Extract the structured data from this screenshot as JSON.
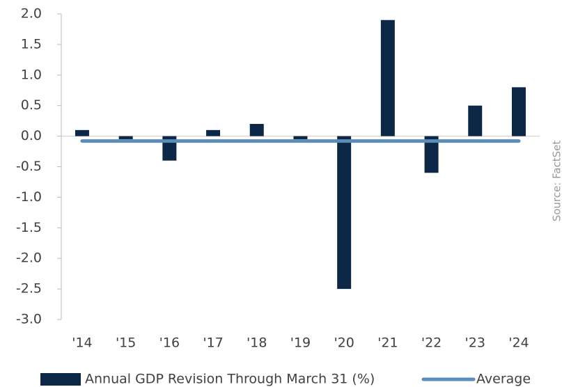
{
  "chart_data": {
    "type": "bar",
    "categories": [
      "'14",
      "'15",
      "'16",
      "'17",
      "'18",
      "'19",
      "'20",
      "'21",
      "'22",
      "'23",
      "'24"
    ],
    "series": [
      {
        "name": "Annual GDP Revision Through March 31 (%)",
        "color": "#0c2846",
        "values": [
          0.1,
          -0.05,
          -0.4,
          0.1,
          0.2,
          -0.05,
          -2.5,
          1.9,
          -0.6,
          0.5,
          0.8
        ]
      },
      {
        "name": "Average",
        "color": "#5b8db8",
        "type": "line",
        "values": [
          -0.08,
          -0.08,
          -0.08,
          -0.08,
          -0.08,
          -0.08,
          -0.08,
          -0.08,
          -0.08,
          -0.08,
          -0.08
        ]
      }
    ],
    "ylim": [
      -3,
      2
    ],
    "yticks": [
      {
        "value": 2,
        "label": "2.0"
      },
      1.5,
      {
        "value": 1,
        "label": "1.0"
      },
      0.5,
      {
        "value": 0,
        "label": "0.0"
      },
      -0.5,
      {
        "value": -1,
        "label": "-1.0"
      },
      -1.5,
      {
        "value": -2,
        "label": "-2.0"
      },
      -2.5,
      {
        "value": -3,
        "label": "-3.0"
      }
    ],
    "source": "Source: FactSet",
    "legend": "bottom"
  }
}
